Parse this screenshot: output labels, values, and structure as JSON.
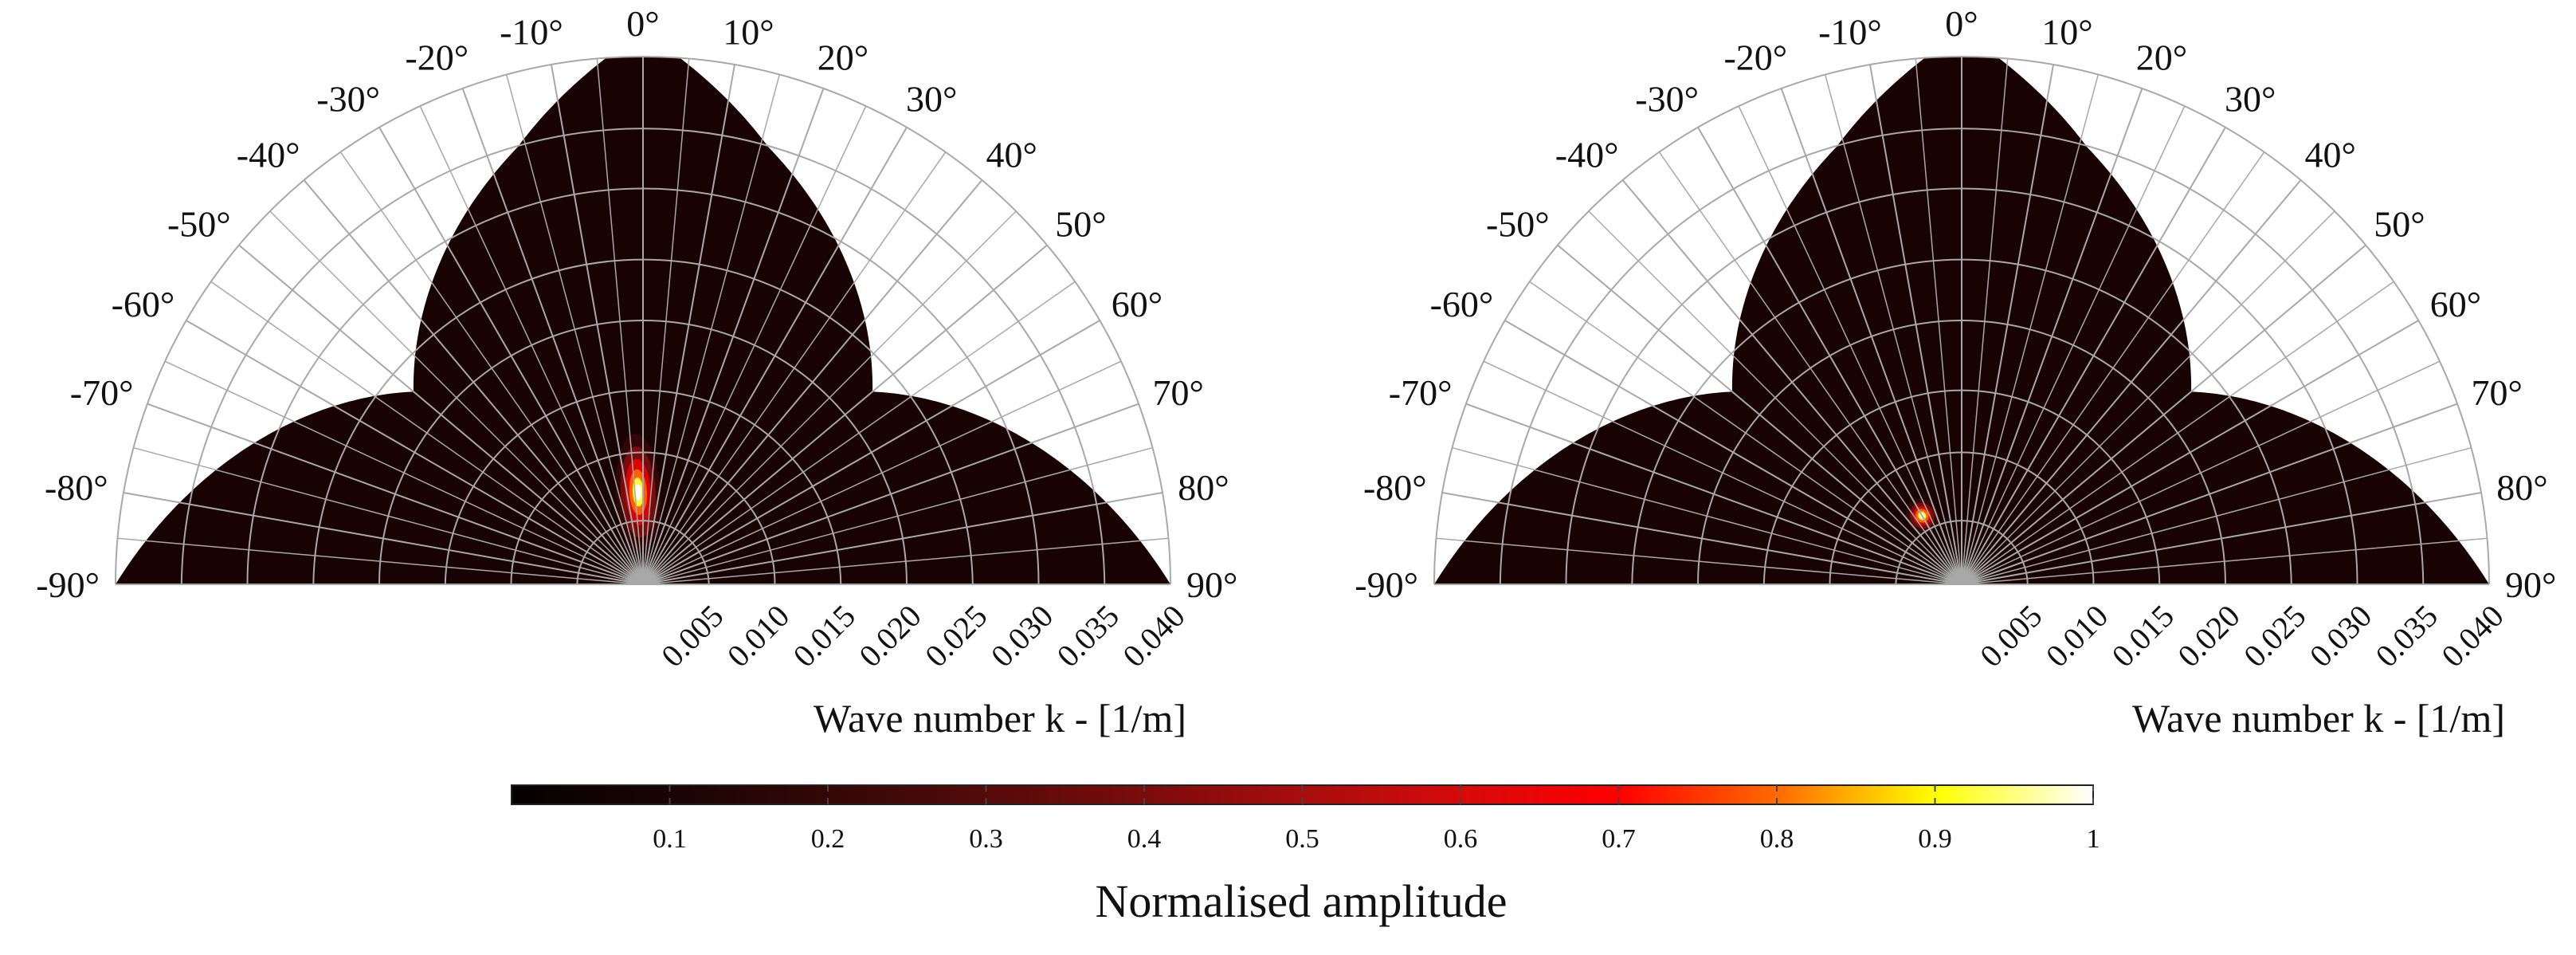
{
  "colors": {
    "wedge": "#180202",
    "grid": "#a8a8a8",
    "cmap": [
      "#050000",
      "#1a0404",
      "#330707",
      "#550a0a",
      "#7a0c0c",
      "#a80d0d",
      "#d60a0a",
      "#ff0000",
      "#ff6a00",
      "#ffff00",
      "#ffffff"
    ]
  },
  "chart_data": [
    {
      "type": "polar-heatmap",
      "panel": "left",
      "theta_ticks": [
        "-90°",
        "-80°",
        "-70°",
        "-60°",
        "-50°",
        "-40°",
        "-30°",
        "-20°",
        "-10°",
        "0°",
        "10°",
        "20°",
        "30°",
        "40°",
        "50°",
        "60°",
        "70°",
        "80°",
        "90°"
      ],
      "theta_values": [
        -90,
        -80,
        -70,
        -60,
        -50,
        -40,
        -30,
        -20,
        -10,
        0,
        10,
        20,
        30,
        40,
        50,
        60,
        70,
        80,
        90
      ],
      "k_ticks": [
        "0.005",
        "0.010",
        "0.015",
        "0.020",
        "0.025",
        "0.030",
        "0.035",
        "0.040"
      ],
      "k_values": [
        0.005,
        0.01,
        0.015,
        0.02,
        0.025,
        0.03,
        0.035,
        0.04
      ],
      "k_max": 0.04,
      "xlabel": "Wave number k - [1/m]",
      "peak": {
        "theta": -3,
        "k": 0.007,
        "amplitude": 1.0
      }
    },
    {
      "type": "polar-heatmap",
      "panel": "right",
      "theta_ticks": [
        "-90°",
        "-80°",
        "-70°",
        "-60°",
        "-50°",
        "-40°",
        "-30°",
        "-20°",
        "-10°",
        "0°",
        "10°",
        "20°",
        "30°",
        "40°",
        "50°",
        "60°",
        "70°",
        "80°",
        "90°"
      ],
      "theta_values": [
        -90,
        -80,
        -70,
        -60,
        -50,
        -40,
        -30,
        -20,
        -10,
        0,
        10,
        20,
        30,
        40,
        50,
        60,
        70,
        80,
        90
      ],
      "k_ticks": [
        "0.005",
        "0.010",
        "0.015",
        "0.020",
        "0.025",
        "0.030",
        "0.035",
        "0.040"
      ],
      "k_values": [
        0.005,
        0.01,
        0.015,
        0.02,
        0.025,
        0.03,
        0.035,
        0.04
      ],
      "k_max": 0.04,
      "xlabel": "Wave number k - [1/m]",
      "peak": {
        "theta": -30,
        "k": 0.006,
        "amplitude": 1.0
      }
    }
  ],
  "colorbar": {
    "title": "Normalised amplitude",
    "ticks": [
      "0.1",
      "0.2",
      "0.3",
      "0.4",
      "0.5",
      "0.6",
      "0.7",
      "0.8",
      "0.9",
      "1"
    ],
    "tick_values": [
      0.1,
      0.2,
      0.3,
      0.4,
      0.5,
      0.6,
      0.7,
      0.8,
      0.9,
      1.0
    ],
    "range": [
      0,
      1
    ]
  }
}
